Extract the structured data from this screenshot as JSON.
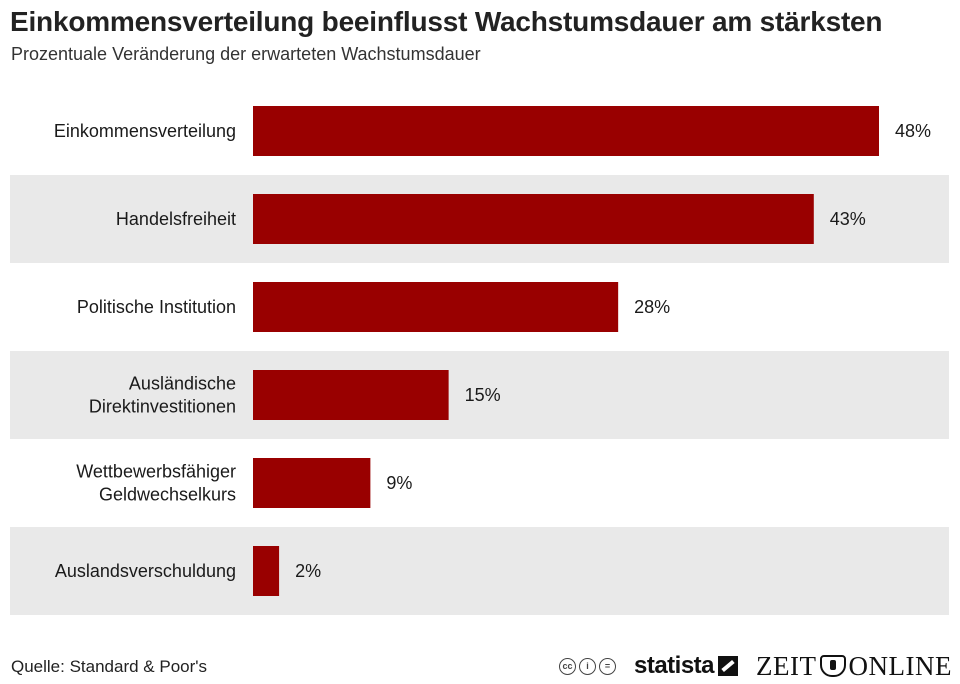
{
  "header": {
    "title": "Einkommensverteilung beeinflusst Wachstumsdauer am stärksten",
    "subtitle": "Prozentuale Veränderung der erwarteten Wachstumsdauer"
  },
  "footer": {
    "source": "Quelle: Standard & Poor's",
    "statista": "statista",
    "zeit_left": "ZEIT",
    "zeit_right": "ONLINE",
    "cc_icons": [
      "cc-icon",
      "by-icon",
      "nd-icon"
    ]
  },
  "chart_data": {
    "type": "bar",
    "orientation": "horizontal",
    "categories": [
      [
        "Einkommensverteilung"
      ],
      [
        "Handelsfreiheit"
      ],
      [
        "Politische Institution"
      ],
      [
        "Ausländische",
        "Direktinvestitionen"
      ],
      [
        "Wettbewerbsfähiger",
        "Geldwechselkurs"
      ],
      [
        "Auslandsverschuldung"
      ]
    ],
    "values": [
      48,
      43,
      28,
      15,
      9,
      2
    ],
    "value_labels": [
      "48%",
      "43%",
      "28%",
      "15%",
      "9%",
      "2%"
    ],
    "xlim": [
      0,
      48
    ],
    "grid": false,
    "bar_color": "#990000",
    "band_color": "#e9e9e9"
  }
}
